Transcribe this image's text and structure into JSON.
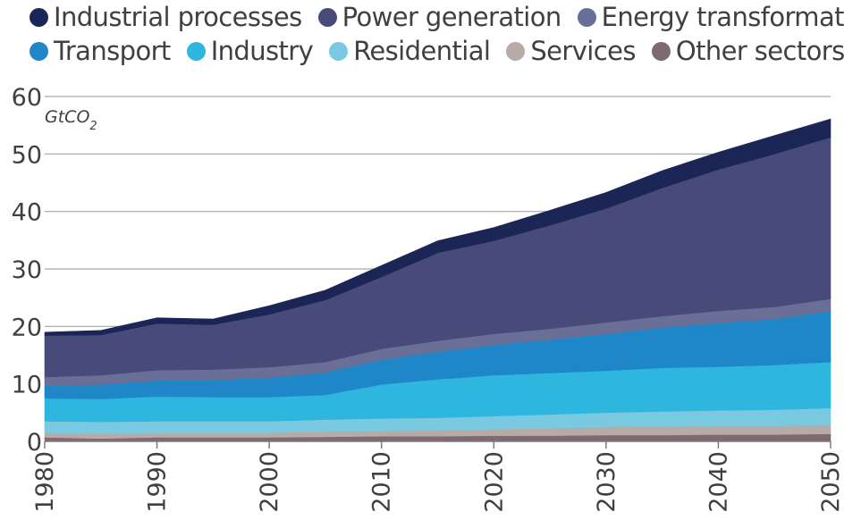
{
  "chart_data": {
    "type": "area",
    "stacked": true,
    "unit_main": "GtCO",
    "unit_sub": "2",
    "x": [
      1980,
      1985,
      1990,
      1995,
      2000,
      2005,
      2010,
      2015,
      2020,
      2025,
      2030,
      2035,
      2040,
      2045,
      2050
    ],
    "xticks": [
      1980,
      1990,
      2000,
      2010,
      2020,
      2030,
      2040,
      2050
    ],
    "xlim": [
      1980,
      2050
    ],
    "yticks": [
      0,
      10,
      20,
      30,
      40,
      50,
      60
    ],
    "ylim": [
      0,
      60
    ],
    "grid": true,
    "legend_position": "top",
    "series": [
      {
        "name": "Other sectors",
        "color": "#7d6a72",
        "values": [
          0.7,
          0.5,
          0.7,
          0.7,
          0.7,
          0.8,
          0.9,
          0.9,
          1.0,
          1.0,
          1.1,
          1.1,
          1.2,
          1.2,
          1.3
        ]
      },
      {
        "name": "Services",
        "color": "#b8aaa5",
        "values": [
          0.8,
          0.8,
          0.8,
          0.8,
          0.8,
          0.9,
          0.9,
          1.0,
          1.1,
          1.3,
          1.4,
          1.5,
          1.5,
          1.5,
          1.5
        ]
      },
      {
        "name": "Residential",
        "color": "#79c9e1",
        "values": [
          2.0,
          2.1,
          2.0,
          2.0,
          2.0,
          2.1,
          2.2,
          2.2,
          2.3,
          2.4,
          2.5,
          2.6,
          2.7,
          2.8,
          3.0
        ]
      },
      {
        "name": "Industry",
        "color": "#2fb6de",
        "values": [
          4.0,
          4.0,
          4.3,
          4.2,
          4.2,
          4.3,
          5.9,
          6.7,
          7.1,
          7.2,
          7.3,
          7.6,
          7.6,
          7.8,
          8.0
        ]
      },
      {
        "name": "Transport",
        "color": "#1f86c8",
        "values": [
          2.2,
          2.5,
          2.8,
          3.0,
          3.4,
          3.9,
          4.3,
          4.8,
          5.3,
          5.8,
          6.4,
          7.0,
          7.6,
          8.0,
          8.9
        ]
      },
      {
        "name": "Energy transformation",
        "color": "#6a6f97",
        "values": [
          1.5,
          1.6,
          1.8,
          1.8,
          1.8,
          1.8,
          1.9,
          1.9,
          1.9,
          1.9,
          2.0,
          2.0,
          2.1,
          2.1,
          2.1
        ]
      },
      {
        "name": "Power generation",
        "color": "#484b79",
        "values": [
          7.2,
          7.0,
          8.1,
          7.8,
          9.2,
          10.8,
          12.5,
          15.3,
          16.2,
          18.0,
          19.8,
          22.3,
          24.6,
          26.6,
          28.1
        ]
      },
      {
        "name": "Industrial processes",
        "color": "#1c2656",
        "values": [
          0.6,
          0.8,
          1.0,
          1.0,
          1.5,
          1.7,
          2.0,
          2.1,
          2.3,
          2.6,
          2.8,
          3.0,
          3.0,
          3.2,
          3.2
        ]
      }
    ],
    "legend_rows": [
      [
        "Industrial processes",
        "Power generation",
        "Energy transformation"
      ],
      [
        "Transport",
        "Industry",
        "Residential",
        "Services",
        "Other sectors"
      ]
    ]
  }
}
